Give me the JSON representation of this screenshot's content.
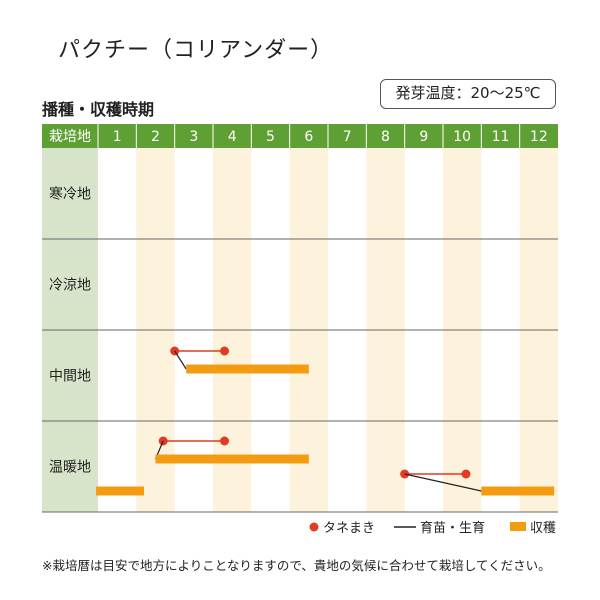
{
  "title": "パクチー（コリアンダー）",
  "germination_temp": "発芽温度：20〜25℃",
  "section_label": "播種・収穫時期",
  "note": "※栽培暦は目安で地方によりことなりますので、貴地の気候に合わせて栽培してください。",
  "colors": {
    "header": "#5fa034",
    "region_col": "#d8e4c9",
    "even_month": "#fdf3dc",
    "sowing": "#e03b23",
    "growing": "#222222",
    "harvest": "#f39c12"
  },
  "chart_data": {
    "type": "table",
    "header_label": "栽培地",
    "months": [
      "1",
      "2",
      "3",
      "4",
      "5",
      "6",
      "7",
      "8",
      "9",
      "10",
      "11",
      "12"
    ],
    "regions": [
      {
        "name": "寒冷地",
        "sowing": [],
        "harvest": []
      },
      {
        "name": "冷涼地",
        "sowing": [],
        "harvest": []
      },
      {
        "name": "中間地",
        "sowing": [
          [
            3.0,
            4.3
          ]
        ],
        "harvest": [
          [
            3.3,
            6.5
          ]
        ]
      },
      {
        "name": "温暖地",
        "sowing": [
          [
            2.7,
            4.3
          ],
          [
            9.0,
            10.6
          ]
        ],
        "harvest": [
          [
            2.5,
            6.5
          ],
          [
            11.0,
            12.9
          ],
          [
            0.95,
            2.2
          ]
        ]
      }
    ],
    "legend": [
      {
        "key": "sowing",
        "label": "タネまき"
      },
      {
        "key": "growing",
        "label": "育苗・生育"
      },
      {
        "key": "harvest",
        "label": "収穫"
      }
    ]
  }
}
